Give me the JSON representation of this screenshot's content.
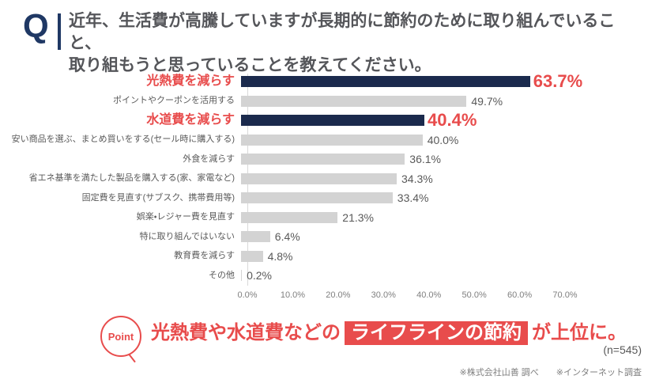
{
  "header": {
    "q_mark": "Q",
    "title_line1": "近年、生活費が高騰していますが長期的に節約のために取り組んでいること、",
    "title_line2": "取り組もうと思っていることを教えてください。"
  },
  "chart_data": {
    "type": "bar",
    "orientation": "horizontal",
    "categories": [
      "光熱費を減らす",
      "ポイントやクーポンを活用する",
      "水道費を減らす",
      "安い商品を選ぶ、まとめ買いをする(セール時に購入する)",
      "外食を減らす",
      "省エネ基準を満たした製品を購入する(家、家電など)",
      "固定費を見直す(サブスク、携帯費用等)",
      "娯楽・レジャー費を見直す",
      "特に取り組んではいない",
      "教育費を減らす",
      "その他"
    ],
    "values": [
      63.7,
      49.7,
      40.4,
      40.0,
      36.1,
      34.3,
      33.4,
      21.3,
      6.4,
      4.8,
      0.2
    ],
    "value_labels": [
      "63.7%",
      "49.7%",
      "40.4%",
      "40.0%",
      "36.1%",
      "34.3%",
      "33.4%",
      "21.3%",
      "6.4%",
      "4.8%",
      "0.2%"
    ],
    "highlighted_indices": [
      0,
      2
    ],
    "xlim": [
      0,
      70
    ],
    "x_ticks": [
      "0.0%",
      "10.0%",
      "20.0%",
      "30.0%",
      "40.0%",
      "50.0%",
      "60.0%",
      "70.0%"
    ],
    "grid": false,
    "legend": false,
    "colors": {
      "bar_highlight": "#1b2a4d",
      "bar_normal": "#d3d3d3",
      "label_highlight": "#e84c4c",
      "label_normal": "#595959",
      "axis_line": "#d9d9d9"
    }
  },
  "point": {
    "badge_label": "Point",
    "text_before": "光熱費や水道費などの",
    "text_highlight": "ライフラインの節約",
    "text_after": "が上位に。",
    "sample_size": "(n=545)"
  },
  "footer": {
    "source": "※株式会社山善 調べ　　※インターネット調査"
  }
}
